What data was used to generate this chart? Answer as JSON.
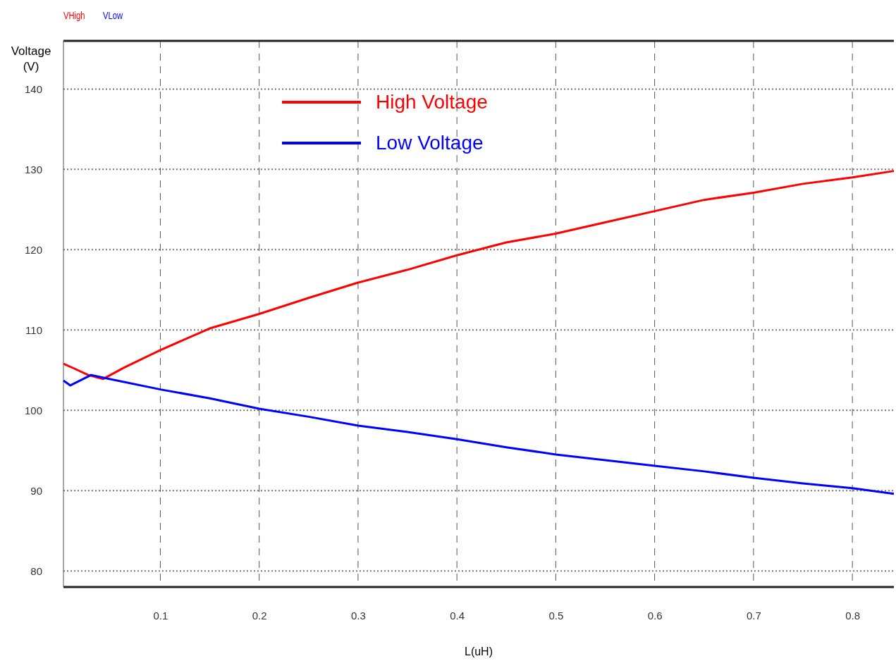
{
  "chart_data": {
    "type": "line",
    "xlabel": "L(uH)",
    "ylabel": "Voltage (V)",
    "xlim": [
      0.002,
      0.842
    ],
    "ylim": [
      78,
      146
    ],
    "xticks": [
      0.1,
      0.2,
      0.3,
      0.4,
      0.5,
      0.6,
      0.7,
      0.8
    ],
    "yticks": [
      80,
      90,
      100,
      110,
      120,
      130,
      140
    ],
    "grid": true,
    "legend": "top left",
    "line_style": "solid",
    "marker": "none",
    "annotations": [
      "VHigh",
      "VLow"
    ],
    "series": [
      {
        "name": "High Voltage",
        "color": "#ff0000",
        "x": [
          0.002,
          0.013,
          0.027,
          0.042,
          0.063,
          0.1,
          0.15,
          0.2,
          0.25,
          0.3,
          0.35,
          0.4,
          0.45,
          0.5,
          0.55,
          0.6,
          0.65,
          0.7,
          0.75,
          0.8,
          0.842
        ],
        "values": [
          105.8,
          105.2,
          104.4,
          103.9,
          105.3,
          107.5,
          110.2,
          112.0,
          114.0,
          115.9,
          117.5,
          119.3,
          120.9,
          122.0,
          123.4,
          124.8,
          126.2,
          127.1,
          128.2,
          129.0,
          129.8
        ]
      },
      {
        "name": "Low Voltage",
        "color": "#0000ff",
        "x": [
          0.002,
          0.009,
          0.03,
          0.045,
          0.1,
          0.15,
          0.2,
          0.25,
          0.3,
          0.35,
          0.4,
          0.45,
          0.5,
          0.55,
          0.6,
          0.65,
          0.7,
          0.75,
          0.8,
          0.842
        ],
        "values": [
          103.7,
          103.1,
          104.4,
          104.0,
          102.6,
          101.5,
          100.2,
          99.2,
          98.1,
          97.3,
          96.4,
          95.4,
          94.5,
          93.8,
          93.1,
          92.4,
          91.6,
          90.9,
          90.3,
          89.6
        ]
      }
    ]
  }
}
